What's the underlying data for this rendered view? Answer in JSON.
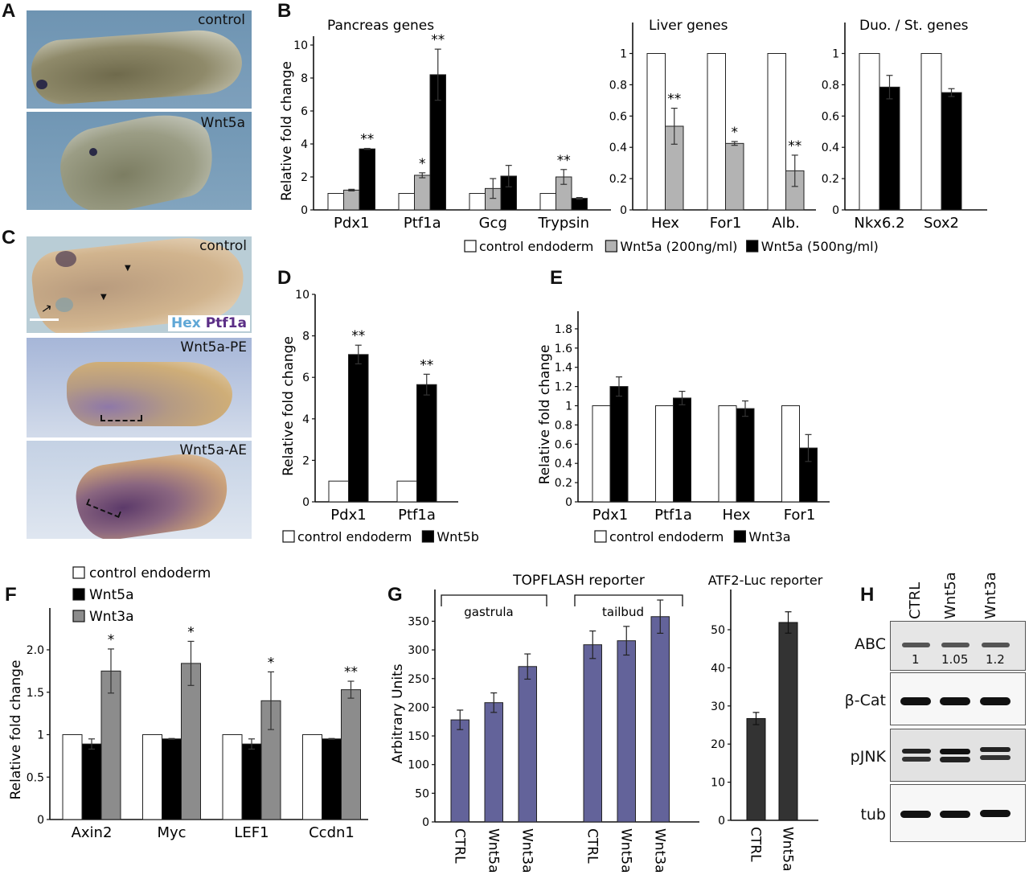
{
  "panels": {
    "A": {
      "letter": "A",
      "photos": [
        {
          "label": "control"
        },
        {
          "label": "Wnt5a"
        }
      ]
    },
    "C": {
      "letter": "C",
      "photos": [
        {
          "label": "control",
          "stain_labels": [
            {
              "text": "Hex",
              "color": "#5fa7d6"
            },
            {
              "text": "Ptf1a",
              "color": "#5b2e86"
            }
          ]
        },
        {
          "label": "Wnt5a-PE"
        },
        {
          "label": "Wnt5a-AE"
        }
      ]
    },
    "H": {
      "letter": "H",
      "lanes": [
        "CTRL",
        "Wnt5a",
        "Wnt3a"
      ],
      "rows": [
        {
          "label": "ABC",
          "quant": [
            "1",
            "1.05",
            "1.2"
          ]
        },
        {
          "label": "β-Cat"
        },
        {
          "label": "pJNK"
        },
        {
          "label": "tub"
        }
      ]
    }
  },
  "chart_data": [
    {
      "id": "B-pancreas",
      "panel": "B",
      "type": "bar",
      "title": "Pancreas genes",
      "ylabel": "Relative fold change",
      "ylim": [
        0,
        11
      ],
      "yticks": [
        0,
        2,
        4,
        6,
        8,
        10
      ],
      "categories": [
        "Pdx1",
        "Ptf1a",
        "Gcg",
        "Trypsin"
      ],
      "series": [
        {
          "name": "control endoderm",
          "color": "#ffffff",
          "values": [
            1,
            1,
            1,
            1
          ],
          "errors": [
            0,
            0,
            0,
            0
          ]
        },
        {
          "name": "Wnt5a (200ng/ml)",
          "color": "#b3b3b3",
          "values": [
            1.2,
            2.1,
            1.3,
            2.0
          ],
          "errors": [
            0.05,
            0.15,
            0.6,
            0.45
          ]
        },
        {
          "name": "Wnt5a (500ng/ml)",
          "color": "#000000",
          "values": [
            3.7,
            8.2,
            2.05,
            0.7
          ],
          "errors": [
            0.03,
            1.55,
            0.65,
            0.05
          ]
        }
      ],
      "annotations": [
        {
          "category": "Pdx1",
          "series": 2,
          "text": "**"
        },
        {
          "category": "Ptf1a",
          "series": 1,
          "text": "*"
        },
        {
          "category": "Ptf1a",
          "series": 2,
          "text": "**"
        },
        {
          "category": "Trypsin",
          "series": 1,
          "text": "**"
        }
      ]
    },
    {
      "id": "B-liver",
      "panel": "B",
      "type": "bar",
      "title": "Liver genes",
      "ylabel": "",
      "ylim": [
        0,
        1.15
      ],
      "yticks": [
        0,
        0.2,
        0.4,
        0.6,
        0.8,
        1
      ],
      "categories": [
        "Hex",
        "For1",
        "Alb."
      ],
      "series": [
        {
          "name": "control endoderm",
          "color": "#ffffff",
          "values": [
            1,
            1,
            1
          ],
          "errors": [
            0,
            0,
            0
          ]
        },
        {
          "name": "Wnt5a (200ng/ml)",
          "color": "#b3b3b3",
          "values": [
            0.535,
            0.425,
            0.25
          ],
          "errors": [
            0.115,
            0.012,
            0.1
          ]
        }
      ],
      "annotations": [
        {
          "category": "Hex",
          "series": 1,
          "text": "**"
        },
        {
          "category": "For1",
          "series": 1,
          "text": "*"
        },
        {
          "category": "Alb.",
          "series": 1,
          "text": "**"
        }
      ]
    },
    {
      "id": "B-duo",
      "panel": "B",
      "type": "bar",
      "title": "Duo. / St. genes",
      "ylabel": "",
      "ylim": [
        0,
        1.15
      ],
      "yticks": [
        0,
        0.2,
        0.4,
        0.6,
        0.8,
        1
      ],
      "categories": [
        "Nkx6.2",
        "Sox2"
      ],
      "series": [
        {
          "name": "control endoderm",
          "color": "#ffffff",
          "values": [
            1,
            1
          ],
          "errors": [
            0,
            0
          ]
        },
        {
          "name": "Wnt5a (500ng/ml)",
          "color": "#000000",
          "values": [
            0.785,
            0.75
          ],
          "errors": [
            0.075,
            0.025
          ]
        }
      ],
      "annotations": []
    },
    {
      "id": "D",
      "panel": "D",
      "type": "bar",
      "title": "",
      "ylabel": "Relative fold change",
      "ylim": [
        0,
        10
      ],
      "yticks": [
        0,
        2,
        4,
        6,
        8,
        10
      ],
      "categories": [
        "Pdx1",
        "Ptf1a"
      ],
      "series": [
        {
          "name": "control endoderm",
          "color": "#ffffff",
          "values": [
            1,
            1
          ],
          "errors": [
            0,
            0
          ]
        },
        {
          "name": "Wnt5b",
          "color": "#000000",
          "values": [
            7.1,
            5.65
          ],
          "errors": [
            0.45,
            0.5
          ]
        }
      ],
      "annotations": [
        {
          "category": "Pdx1",
          "series": 1,
          "text": "**"
        },
        {
          "category": "Ptf1a",
          "series": 1,
          "text": "**"
        }
      ]
    },
    {
      "id": "E",
      "panel": "E",
      "type": "bar",
      "title": "",
      "ylabel": "Relative fold change",
      "ylim": [
        0,
        2.0
      ],
      "yticks": [
        0,
        0.2,
        0.4,
        0.6,
        0.8,
        1,
        1.2,
        1.4,
        1.6,
        1.8
      ],
      "categories": [
        "Pdx1",
        "Ptf1a",
        "Hex",
        "For1"
      ],
      "series": [
        {
          "name": "control endoderm",
          "color": "#ffffff",
          "values": [
            1,
            1,
            1,
            1
          ],
          "errors": [
            0,
            0,
            0,
            0
          ]
        },
        {
          "name": "Wnt3a",
          "color": "#000000",
          "values": [
            1.2,
            1.08,
            0.97,
            0.56
          ],
          "errors": [
            0.1,
            0.07,
            0.08,
            0.14
          ]
        }
      ],
      "annotations": []
    },
    {
      "id": "F",
      "panel": "F",
      "type": "bar",
      "title": "",
      "ylabel": "Relative fold change",
      "ylim": [
        0,
        2.5
      ],
      "yticks": [
        0,
        0.5,
        1,
        1.5,
        2.0
      ],
      "ytick_labels": [
        "0",
        "0.5",
        "1",
        "1.5",
        "2.0"
      ],
      "categories": [
        "Axin2",
        "Myc",
        "LEF1",
        "Ccdn1"
      ],
      "series": [
        {
          "name": "control endoderm",
          "color": "#ffffff",
          "values": [
            1,
            1,
            1,
            1
          ],
          "errors": [
            0,
            0,
            0,
            0
          ]
        },
        {
          "name": "Wnt5a",
          "color": "#000000",
          "values": [
            0.89,
            0.95,
            0.89,
            0.95
          ],
          "errors": [
            0.06,
            0.005,
            0.06,
            0.005
          ]
        },
        {
          "name": "Wnt3a",
          "color": "#8c8c8c",
          "values": [
            1.75,
            1.84,
            1.4,
            1.53
          ],
          "errors": [
            0.26,
            0.26,
            0.34,
            0.1
          ]
        }
      ],
      "annotations": [
        {
          "category": "Axin2",
          "series": 2,
          "text": "*"
        },
        {
          "category": "Myc",
          "series": 2,
          "text": "*"
        },
        {
          "category": "LEF1",
          "series": 2,
          "text": "*"
        },
        {
          "category": "Ccdn1",
          "series": 2,
          "text": "**"
        }
      ]
    },
    {
      "id": "G-topflash",
      "panel": "G",
      "type": "bar",
      "title": "TOPFLASH reporter",
      "ylabel": "Arbitrary Units",
      "ylim": [
        0,
        400
      ],
      "yticks": [
        0,
        50,
        100,
        150,
        200,
        250,
        300,
        350
      ],
      "groups": [
        {
          "label": "gastrula",
          "categories": [
            "CTRL",
            "Wnt5a",
            "Wnt3a"
          ]
        },
        {
          "label": "tailbud",
          "categories": [
            "CTRL",
            "Wnt5a",
            "Wnt3a"
          ]
        }
      ],
      "categories": [
        "CTRL",
        "Wnt5a",
        "Wnt3a",
        "CTRL",
        "Wnt5a",
        "Wnt3a"
      ],
      "series": [
        {
          "name": "TOPFLASH",
          "color": "#63639a",
          "values": [
            178,
            208,
            271,
            309,
            316,
            358
          ],
          "errors": [
            17,
            17,
            22,
            24,
            25,
            29
          ]
        }
      ]
    },
    {
      "id": "G-atf2",
      "panel": "G",
      "type": "bar",
      "title": "ATF2-Luc reporter",
      "ylabel": "",
      "ylim": [
        0,
        58
      ],
      "yticks": [
        0,
        10,
        20,
        30,
        40,
        50
      ],
      "categories": [
        "CTRL",
        "Wnt5a"
      ],
      "series": [
        {
          "name": "ATF2-Luc",
          "color": "#333333",
          "values": [
            26.7,
            51.9
          ],
          "errors": [
            1.6,
            2.8
          ]
        }
      ]
    }
  ],
  "legends": {
    "B": [
      "control endoderm",
      "Wnt5a (200ng/ml)",
      "Wnt5a (500ng/ml)"
    ],
    "D": [
      "control endoderm",
      "Wnt5b"
    ],
    "E": [
      "control endoderm",
      "Wnt3a"
    ],
    "F": [
      "control endoderm",
      "Wnt5a",
      "Wnt3a"
    ]
  }
}
